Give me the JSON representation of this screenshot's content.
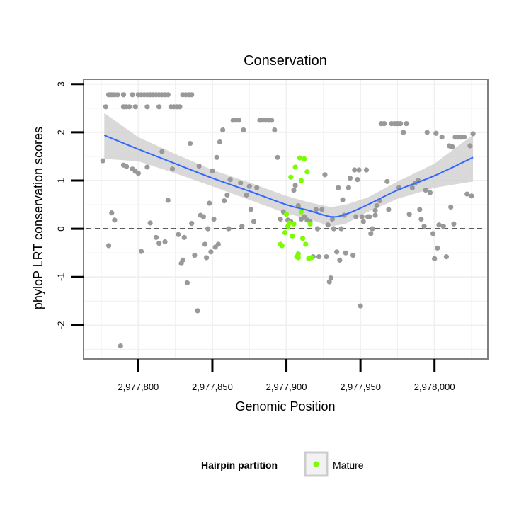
{
  "chart_data": {
    "type": "scatter",
    "title": "Conservation",
    "xlabel": "Genomic Position",
    "ylabel": "phyloP LRT conservation scores",
    "xlim": [
      2977763,
      2978036
    ],
    "ylim": [
      -2.7,
      3.1
    ],
    "x_ticks": [
      2977800,
      2977850,
      2977900,
      2977950,
      2978000
    ],
    "x_tick_labels": [
      "2,977,800",
      "2,977,850",
      "2,977,900",
      "2,977,950",
      "2,978,000"
    ],
    "y_ticks": [
      -2,
      -1,
      0,
      1,
      2,
      3
    ],
    "y_tick_labels": [
      "-2",
      "-1",
      "0",
      "1",
      "2",
      "3"
    ],
    "reference_line_y": 0,
    "grid": true,
    "legend": {
      "title": "Hairpin partition",
      "placement": "bottom",
      "entries": [
        {
          "label": "Mature",
          "color": "#7cfc00"
        }
      ]
    },
    "colors": {
      "other": "#999999",
      "mature": "#7cfc00",
      "smooth": "#3366ff",
      "band": "#cccccc"
    },
    "series": [
      {
        "group": "other",
        "points": [
          [
            2977778,
            2.53
          ],
          [
            2977780,
            2.78
          ],
          [
            2977782,
            2.78
          ],
          [
            2977784,
            2.78
          ],
          [
            2977786,
            2.78
          ],
          [
            2977790,
            2.78
          ],
          [
            2977792,
            2.53
          ],
          [
            2977794,
            2.53
          ],
          [
            2977796,
            2.78
          ],
          [
            2977798,
            2.53
          ],
          [
            2977800,
            2.78
          ],
          [
            2977802,
            2.78
          ],
          [
            2977804,
            2.78
          ],
          [
            2977806,
            2.78
          ],
          [
            2977808,
            2.78
          ],
          [
            2977810,
            2.78
          ],
          [
            2977812,
            2.78
          ],
          [
            2977814,
            2.78
          ],
          [
            2977816,
            2.78
          ],
          [
            2977818,
            2.78
          ],
          [
            2977820,
            2.78
          ],
          [
            2977822,
            2.53
          ],
          [
            2977824,
            2.53
          ],
          [
            2977826,
            2.53
          ],
          [
            2977828,
            2.53
          ],
          [
            2977830,
            2.78
          ],
          [
            2977832,
            2.78
          ],
          [
            2977834,
            2.78
          ],
          [
            2977836,
            2.78
          ],
          [
            2977814,
            2.53
          ],
          [
            2977806,
            2.53
          ],
          [
            2977790,
            2.53
          ],
          [
            2977776,
            1.41
          ],
          [
            2977780,
            -0.35
          ],
          [
            2977782,
            0.33
          ],
          [
            2977784,
            0.18
          ],
          [
            2977788,
            -2.43
          ],
          [
            2977790,
            1.32
          ],
          [
            2977792,
            1.29
          ],
          [
            2977796,
            1.24
          ],
          [
            2977798,
            1.19
          ],
          [
            2977800,
            1.15
          ],
          [
            2977802,
            -0.47
          ],
          [
            2977806,
            1.28
          ],
          [
            2977808,
            0.12
          ],
          [
            2977812,
            -0.18
          ],
          [
            2977814,
            -0.3
          ],
          [
            2977816,
            1.6
          ],
          [
            2977818,
            -0.27
          ],
          [
            2977820,
            0.59
          ],
          [
            2977823,
            1.24
          ],
          [
            2977827,
            -0.12
          ],
          [
            2977829,
            -0.72
          ],
          [
            2977830,
            -0.65
          ],
          [
            2977831,
            -0.18
          ],
          [
            2977833,
            -1.12
          ],
          [
            2977835,
            1.77
          ],
          [
            2977836,
            0.11
          ],
          [
            2977838,
            -0.55
          ],
          [
            2977840,
            -1.7
          ],
          [
            2977841,
            1.3
          ],
          [
            2977842,
            0.28
          ],
          [
            2977844,
            0.25
          ],
          [
            2977845,
            -0.32
          ],
          [
            2977846,
            -0.6
          ],
          [
            2977847,
            0.0
          ],
          [
            2977848,
            0.53
          ],
          [
            2977849,
            -0.48
          ],
          [
            2977850,
            1.2
          ],
          [
            2977851,
            0.2
          ],
          [
            2977852,
            -0.38
          ],
          [
            2977853,
            1.48
          ],
          [
            2977854,
            -0.32
          ],
          [
            2977855,
            1.8
          ],
          [
            2977857,
            2.05
          ],
          [
            2977858,
            0.58
          ],
          [
            2977860,
            0.7
          ],
          [
            2977861,
            0.0
          ],
          [
            2977862,
            1.02
          ],
          [
            2977864,
            2.25
          ],
          [
            2977866,
            2.25
          ],
          [
            2977868,
            2.25
          ],
          [
            2977869,
            0.95
          ],
          [
            2977870,
            0.05
          ],
          [
            2977871,
            2.05
          ],
          [
            2977873,
            0.7
          ],
          [
            2977875,
            0.88
          ],
          [
            2977876,
            0.4
          ],
          [
            2977878,
            0.15
          ],
          [
            2977880,
            0.85
          ],
          [
            2977882,
            2.25
          ],
          [
            2977884,
            2.25
          ],
          [
            2977886,
            2.25
          ],
          [
            2977888,
            2.25
          ],
          [
            2977890,
            2.25
          ],
          [
            2977892,
            2.05
          ],
          [
            2977894,
            1.48
          ],
          [
            2977896,
            0.2
          ],
          [
            2977898,
            0.35
          ],
          [
            2977901,
            0.18
          ],
          [
            2977903,
            0.15
          ],
          [
            2977905,
            0.8
          ],
          [
            2977906,
            0.9
          ],
          [
            2977908,
            0.48
          ],
          [
            2977910,
            0.2
          ],
          [
            2977912,
            0.25
          ],
          [
            2977914,
            0.18
          ],
          [
            2977916,
            0.15
          ],
          [
            2977918,
            -0.58
          ],
          [
            2977920,
            0.4
          ],
          [
            2977921,
            0.0
          ],
          [
            2977922,
            -0.58
          ],
          [
            2977924,
            0.4
          ],
          [
            2977926,
            1.12
          ],
          [
            2977927,
            -0.58
          ],
          [
            2977928,
            0.08
          ],
          [
            2977929,
            -1.1
          ],
          [
            2977930,
            -1.02
          ],
          [
            2977931,
            0.2
          ],
          [
            2977932,
            0.0
          ],
          [
            2977934,
            -0.48
          ],
          [
            2977935,
            0.85
          ],
          [
            2977936,
            -0.65
          ],
          [
            2977937,
            0.0
          ],
          [
            2977938,
            0.6
          ],
          [
            2977939,
            0.28
          ],
          [
            2977940,
            -0.5
          ],
          [
            2977942,
            0.85
          ],
          [
            2977943,
            1.05
          ],
          [
            2977945,
            -0.55
          ],
          [
            2977946,
            1.22
          ],
          [
            2977947,
            0.25
          ],
          [
            2977948,
            1.02
          ],
          [
            2977949,
            1.22
          ],
          [
            2977950,
            -1.6
          ],
          [
            2977951,
            0.25
          ],
          [
            2977952,
            0.15
          ],
          [
            2977954,
            1.22
          ],
          [
            2977955,
            0.25
          ],
          [
            2977956,
            0.25
          ],
          [
            2977957,
            -0.1
          ],
          [
            2977958,
            0.0
          ],
          [
            2977960,
            0.38
          ],
          [
            2977961,
            0.48
          ],
          [
            2977963,
            0.58
          ],
          [
            2977964,
            2.18
          ],
          [
            2977966,
            2.18
          ],
          [
            2977968,
            0.98
          ],
          [
            2977969,
            0.4
          ],
          [
            2977971,
            2.18
          ],
          [
            2977973,
            2.18
          ],
          [
            2977975,
            2.18
          ],
          [
            2977977,
            2.18
          ],
          [
            2977979,
            2.0
          ],
          [
            2977981,
            2.18
          ],
          [
            2977983,
            0.3
          ],
          [
            2977985,
            0.85
          ],
          [
            2977987,
            0.95
          ],
          [
            2977989,
            1.0
          ],
          [
            2977990,
            0.4
          ],
          [
            2977991,
            0.2
          ],
          [
            2977993,
            0.05
          ],
          [
            2977994,
            0.8
          ],
          [
            2977995,
            2.0
          ],
          [
            2977997,
            0.75
          ],
          [
            2977999,
            -0.1
          ],
          [
            2978000,
            -0.62
          ],
          [
            2978001,
            1.98
          ],
          [
            2978002,
            -0.4
          ],
          [
            2978003,
            0.08
          ],
          [
            2978005,
            1.9
          ],
          [
            2978006,
            0.05
          ],
          [
            2978008,
            -0.58
          ],
          [
            2978010,
            1.72
          ],
          [
            2978011,
            0.45
          ],
          [
            2978012,
            1.7
          ],
          [
            2978013,
            0.1
          ],
          [
            2978014,
            1.9
          ],
          [
            2978016,
            1.9
          ],
          [
            2978018,
            1.9
          ],
          [
            2978020,
            1.9
          ],
          [
            2978022,
            0.72
          ],
          [
            2978024,
            1.72
          ],
          [
            2978025,
            0.68
          ],
          [
            2978026,
            1.97
          ],
          [
            2977960,
            0.28
          ],
          [
            2977976,
            0.85
          ]
        ]
      },
      {
        "group": "mature",
        "points": [
          [
            2977896,
            -0.32
          ],
          [
            2977897,
            -0.35
          ],
          [
            2977899,
            -0.08
          ],
          [
            2977900,
            0.3
          ],
          [
            2977901,
            0.05
          ],
          [
            2977902,
            0.12
          ],
          [
            2977903,
            1.07
          ],
          [
            2977904,
            -0.15
          ],
          [
            2977905,
            0.1
          ],
          [
            2977906,
            1.28
          ],
          [
            2977907,
            -0.58
          ],
          [
            2977908,
            -0.6
          ],
          [
            2977909,
            1.47
          ],
          [
            2977910,
            0.35
          ],
          [
            2977911,
            -0.2
          ],
          [
            2977912,
            1.45
          ],
          [
            2977913,
            -0.32
          ],
          [
            2977914,
            1.18
          ],
          [
            2977915,
            -0.62
          ],
          [
            2977916,
            0.1
          ],
          [
            2977917,
            -0.6
          ],
          [
            2977908,
            -0.52
          ],
          [
            2977910,
            1.0
          ]
        ]
      }
    ],
    "smooth_fit": {
      "x": [
        2977777,
        2977800,
        2977825,
        2977850,
        2977875,
        2977900,
        2977915,
        2977930,
        2977940,
        2977955,
        2977975,
        2978000,
        2978026
      ],
      "y": [
        1.94,
        1.65,
        1.35,
        1.05,
        0.78,
        0.5,
        0.38,
        0.25,
        0.3,
        0.5,
        0.8,
        1.1,
        1.48
      ],
      "lower": [
        1.45,
        1.4,
        1.15,
        0.88,
        0.6,
        0.32,
        0.2,
        0.05,
        0.1,
        0.35,
        0.62,
        0.85,
        0.98
      ],
      "upper": [
        2.4,
        1.9,
        1.55,
        1.22,
        0.96,
        0.68,
        0.55,
        0.45,
        0.5,
        0.65,
        0.98,
        1.35,
        1.95
      ]
    }
  }
}
